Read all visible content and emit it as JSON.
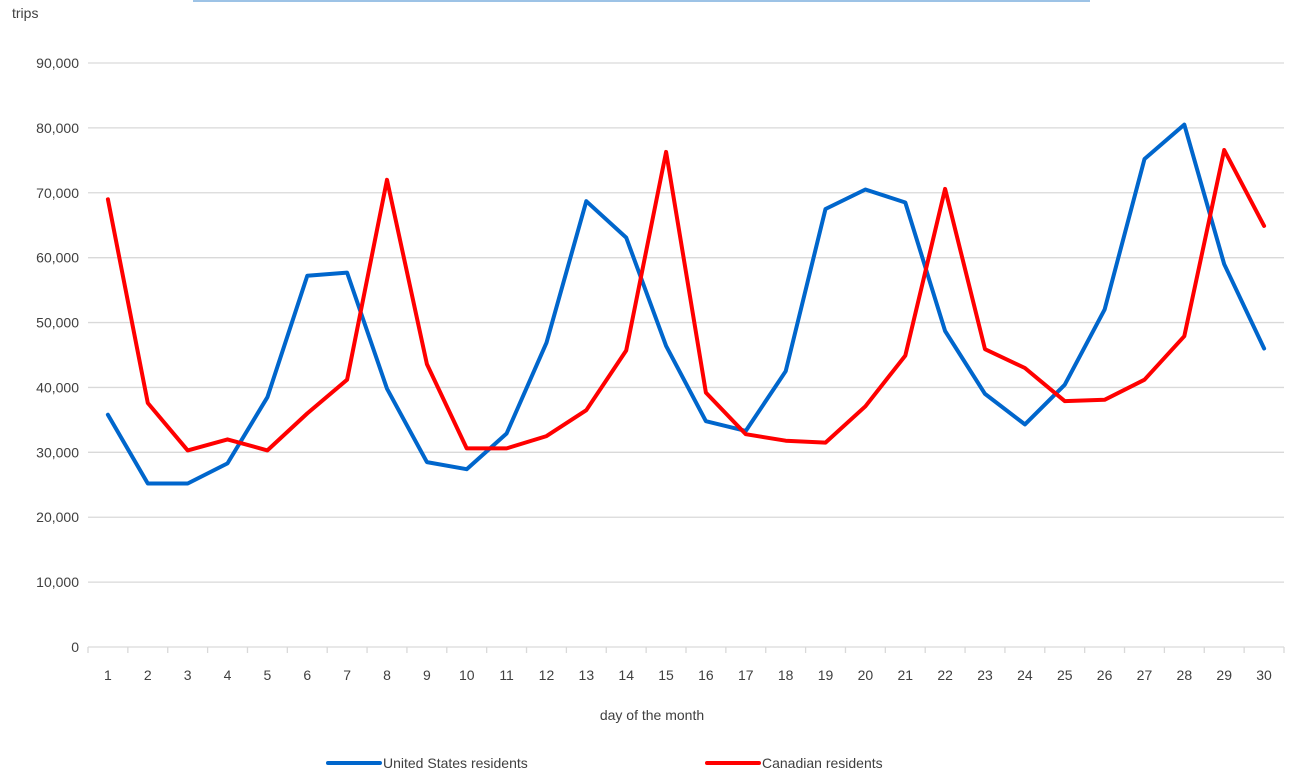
{
  "chart_data": {
    "type": "line",
    "title": "",
    "xlabel": "day of the month",
    "ylabel": "trips",
    "ylim": [
      0,
      90000
    ],
    "yticks": [
      0,
      10000,
      20000,
      30000,
      40000,
      50000,
      60000,
      70000,
      80000,
      90000
    ],
    "ytick_labels": [
      "0",
      "10,000",
      "20,000",
      "30,000",
      "40,000",
      "50,000",
      "60,000",
      "70,000",
      "80,000",
      "90,000"
    ],
    "grid": true,
    "legend_position": "bottom",
    "categories": [
      "1",
      "2",
      "3",
      "4",
      "5",
      "6",
      "7",
      "8",
      "9",
      "10",
      "11",
      "12",
      "13",
      "14",
      "15",
      "16",
      "17",
      "18",
      "19",
      "20",
      "21",
      "22",
      "23",
      "24",
      "25",
      "26",
      "27",
      "28",
      "29",
      "30"
    ],
    "series": [
      {
        "name": "United States residents",
        "color": "#0066cc",
        "values": [
          35800,
          25200,
          25200,
          28300,
          38500,
          57200,
          57700,
          39800,
          28500,
          27400,
          32900,
          46900,
          68700,
          63100,
          46400,
          34800,
          33300,
          42500,
          67500,
          70500,
          68500,
          48700,
          39000,
          34300,
          40400,
          52000,
          75200,
          80500,
          59000,
          46000
        ]
      },
      {
        "name": "Canadian residents",
        "color": "#ff0000",
        "values": [
          69000,
          37600,
          30300,
          32000,
          30300,
          36000,
          41200,
          72000,
          43600,
          30600,
          30600,
          32500,
          36500,
          45700,
          76300,
          39200,
          32800,
          31800,
          31500,
          37100,
          44900,
          70600,
          45900,
          43000,
          37900,
          38100,
          41200,
          47900,
          76600,
          64900
        ]
      }
    ]
  }
}
